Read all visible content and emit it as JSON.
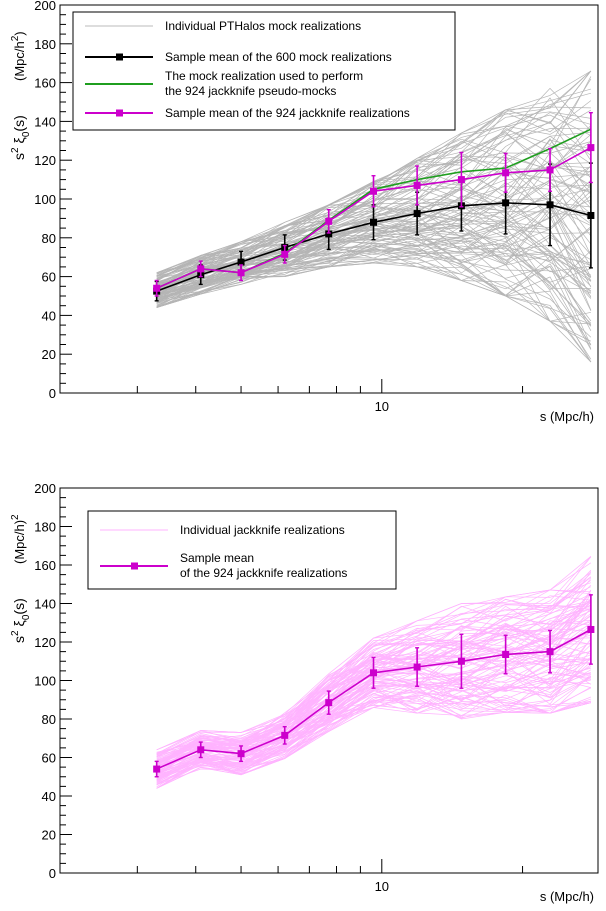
{
  "chart_data": [
    {
      "type": "line",
      "xscale": "log",
      "xlim": [
        2.05,
        29.0
      ],
      "ylim": [
        0,
        200
      ],
      "ylabel_main": "s",
      "ylabel_sup": "2",
      "ylabel_xi": "ξ",
      "ylabel_sub": "0",
      "ylabel_arg": "(s)",
      "ylabel_unit": "(Mpc/h",
      "ylabel_unit_sup": "2",
      "ylabel_unit_close": ")",
      "xlabel": "s   (Mpc/h)",
      "y_ticks": [
        0,
        20,
        40,
        60,
        80,
        100,
        120,
        140,
        160,
        180,
        200
      ],
      "x_tick_labels": [
        {
          "value": 10,
          "label": "10"
        }
      ],
      "x": [
        3.3,
        4.1,
        5.0,
        6.2,
        7.7,
        9.6,
        11.9,
        14.8,
        18.4,
        22.9,
        28.0
      ],
      "legend": {
        "entries": [
          {
            "label": "Individual PTHalos mock realizations",
            "color": "#bbbbbb",
            "marker": false
          },
          {
            "label": "Sample mean of the 600 mock realizations",
            "color": "#000000",
            "marker": true
          },
          {
            "label": "The mock realization used to perform",
            "label2": "the 924 jackknife pseudo-mocks",
            "color": "#1f9e1f",
            "marker": false
          },
          {
            "label": "Sample mean of the 924 jackknife realizations",
            "color": "#cc00cc",
            "marker": true
          }
        ]
      },
      "band": {
        "color": "#b5b5b5",
        "center": [
          53,
          61,
          67,
          74,
          81,
          88,
          93,
          96,
          98,
          97,
          91
        ],
        "halfwidth": [
          9,
          10,
          11,
          14,
          16,
          21,
          28,
          38,
          48,
          60,
          75
        ]
      },
      "series": [
        {
          "name": "Sample mean of the 600 mock realizations",
          "color": "#000000",
          "marker": true,
          "values": [
            52.5,
            61,
            67.5,
            75,
            82,
            88,
            92.5,
            96.5,
            98,
            97,
            91.5
          ],
          "errors": [
            5,
            5,
            5.5,
            6.5,
            8,
            9,
            11,
            13,
            16,
            21,
            27
          ]
        },
        {
          "name": "The mock realization used to perform the 924 jackknife pseudo-mocks",
          "color": "#1f9e1f",
          "marker": false,
          "values": [
            54,
            64,
            62,
            72,
            89,
            105,
            110,
            114,
            116,
            126,
            136
          ],
          "errors": null
        },
        {
          "name": "Sample mean of the 924 jackknife realizations",
          "color": "#cc00cc",
          "marker": true,
          "values": [
            54,
            64,
            62,
            71.5,
            88.5,
            104,
            107,
            110,
            113.5,
            115,
            126.5
          ],
          "errors": [
            4,
            4,
            4,
            4.5,
            6,
            8,
            10,
            14,
            10,
            11,
            18
          ]
        }
      ]
    },
    {
      "type": "line",
      "xscale": "log",
      "xlim": [
        2.05,
        29.0
      ],
      "ylim": [
        0,
        200
      ],
      "ylabel_main": "s",
      "ylabel_sup": "2",
      "ylabel_xi": "ξ",
      "ylabel_sub": "0",
      "ylabel_arg": "(s)",
      "ylabel_unit": "(Mpc/h)",
      "ylabel_unit_sup": "2",
      "xlabel": "s   (Mpc/h)",
      "y_ticks": [
        0,
        20,
        40,
        60,
        80,
        100,
        120,
        140,
        160,
        180,
        200
      ],
      "x_tick_labels": [
        {
          "value": 10,
          "label": "10"
        }
      ],
      "x": [
        3.3,
        4.1,
        5.0,
        6.2,
        7.7,
        9.6,
        11.9,
        14.8,
        18.4,
        22.9,
        28.0
      ],
      "legend": {
        "entries": [
          {
            "label": "Individual jackknife realizations",
            "color": "#ffb3ff",
            "marker": false
          },
          {
            "label": "Sample mean",
            "label2": "of the 924 jackknife realizations",
            "color": "#cc00cc",
            "marker": true
          }
        ]
      },
      "band": {
        "color": "#ffb3ff",
        "center": [
          54,
          64,
          62,
          71.5,
          88.5,
          104,
          107,
          110,
          113.5,
          115,
          126.5
        ],
        "halfwidth": [
          10,
          10,
          11,
          12,
          15,
          18,
          24,
          30,
          30,
          32,
          38
        ]
      },
      "series": [
        {
          "name": "Sample mean of the 924 jackknife realizations",
          "color": "#cc00cc",
          "marker": true,
          "values": [
            54,
            64,
            62,
            71.5,
            88.5,
            104,
            107,
            110,
            113.5,
            115,
            126.5
          ],
          "errors": [
            4,
            4,
            4,
            4.5,
            6,
            8,
            10,
            14,
            10,
            11,
            18
          ]
        }
      ]
    }
  ]
}
